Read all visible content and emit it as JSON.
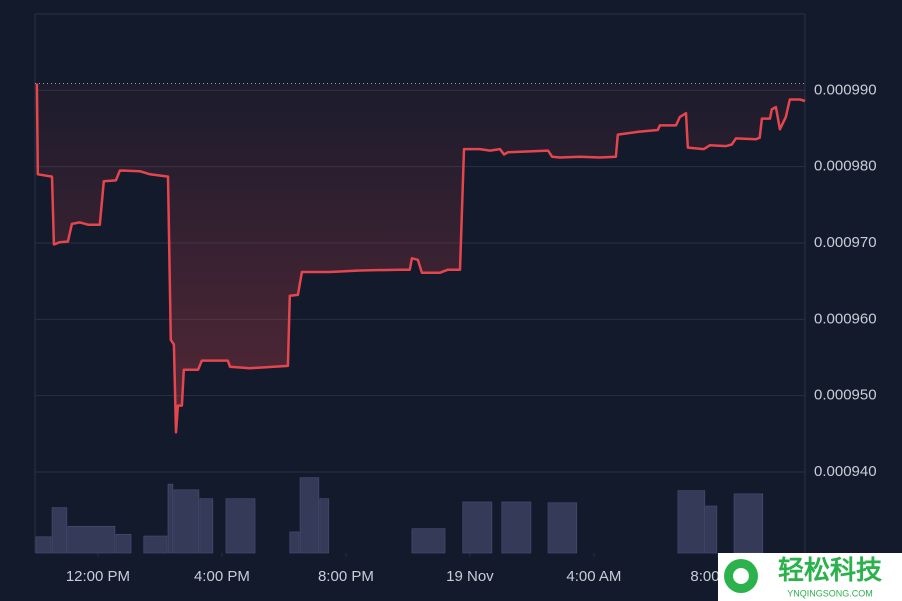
{
  "chart_data": {
    "type": "line",
    "x": [
      -1.97,
      -1.94,
      -1.48,
      -1.42,
      -1.23,
      -0.97,
      -0.84,
      -0.58,
      -0.32,
      0.06,
      0.19,
      0.58,
      0.71,
      1.35,
      1.68,
      2.26,
      2.35,
      2.45,
      2.52,
      2.58,
      2.71,
      2.77,
      3.23,
      3.35,
      4.19,
      4.26,
      4.9,
      6.13,
      6.19,
      6.45,
      6.58,
      7.48,
      8.45,
      9.74,
      10.06,
      10.13,
      10.32,
      10.45,
      11.03,
      11.29,
      11.68,
      11.81,
      12.32,
      12.65,
      12.97,
      13.1,
      13.23,
      13.94,
      14.52,
      14.65,
      14.9,
      15.55,
      16.19,
      16.71,
      16.77,
      17.48,
      18.06,
      18.13,
      18.65,
      18.77,
      18.97,
      19.03,
      19.55,
      19.74,
      20.26,
      20.45,
      20.58,
      21.23,
      21.35,
      21.42,
      21.68,
      21.74,
      21.87,
      22.0,
      22.19,
      22.32,
      22.65,
      22.81
    ],
    "series": [
      {
        "color": "#e5454d",
        "values": [
          0.0009909,
          0.000979,
          0.0009787,
          0.0009698,
          0.0009701,
          0.0009702,
          0.0009725,
          0.0009727,
          0.0009724,
          0.0009724,
          0.0009781,
          0.0009782,
          0.0009795,
          0.0009794,
          0.000979,
          0.0009787,
          0.0009573,
          0.0009567,
          0.0009452,
          0.0009487,
          0.0009487,
          0.0009534,
          0.0009534,
          0.0009546,
          0.0009546,
          0.0009538,
          0.0009536,
          0.0009539,
          0.0009631,
          0.0009632,
          0.0009662,
          0.0009662,
          0.0009664,
          0.0009665,
          0.0009665,
          0.000968,
          0.0009678,
          0.0009661,
          0.0009661,
          0.0009665,
          0.0009665,
          0.0009823,
          0.0009823,
          0.0009821,
          0.0009823,
          0.0009816,
          0.0009819,
          0.000982,
          0.0009821,
          0.0009813,
          0.0009812,
          0.0009813,
          0.0009812,
          0.0009813,
          0.0009842,
          0.0009846,
          0.0009848,
          0.0009854,
          0.0009854,
          0.0009865,
          0.000987,
          0.0009825,
          0.0009823,
          0.0009828,
          0.0009827,
          0.0009829,
          0.0009837,
          0.0009836,
          0.0009838,
          0.0009863,
          0.0009863,
          0.0009875,
          0.0009878,
          0.0009849,
          0.0009865,
          0.0009888,
          0.0009888,
          0.0009886
        ]
      }
    ],
    "reference": 0.0009909,
    "xlim": [
      -2.03,
      22.81
    ],
    "xticks": [
      {
        "value": 0,
        "label": "12:00 PM"
      },
      {
        "value": 4,
        "label": "4:00 PM"
      },
      {
        "value": 8,
        "label": "8:00 PM"
      },
      {
        "value": 12,
        "label": "19 Nov"
      },
      {
        "value": 16,
        "label": "4:00 AM"
      },
      {
        "value": 20,
        "label": "8:00 AM"
      }
    ],
    "ylim": [
      0.00094,
      0.001
    ],
    "yticks": [
      {
        "value": 0.00094,
        "label": "0.000940"
      },
      {
        "value": 0.00095,
        "label": "0.000950"
      },
      {
        "value": 0.00096,
        "label": "0.000960"
      },
      {
        "value": 0.00097,
        "label": "0.000970"
      },
      {
        "value": 0.00098,
        "label": "0.000980"
      },
      {
        "value": 0.00099,
        "label": "0.000990"
      }
    ],
    "grid": true,
    "volume": {
      "color": "#353a58",
      "lim": [
        0,
        100
      ],
      "x0": [
        -2.0,
        -1.48,
        -0.97,
        0.58,
        1.48,
        2.26,
        2.45,
        3.29,
        4.13,
        6.19,
        6.52,
        7.16,
        10.13,
        11.77,
        13.03,
        14.52,
        18.71,
        19.61,
        20.52
      ],
      "x1": [
        -1.48,
        -0.97,
        0.58,
        1.1,
        2.26,
        2.45,
        3.29,
        3.74,
        5.1,
        6.52,
        7.16,
        7.48,
        11.23,
        12.74,
        14.0,
        15.48,
        19.61,
        20.0,
        21.48
      ],
      "values": [
        20,
        56,
        33,
        23,
        21,
        85,
        78,
        67,
        67,
        26,
        93,
        67,
        30,
        63,
        63,
        62,
        77,
        58,
        73
      ]
    }
  },
  "watermark": {
    "text": "轻松科技",
    "url": "YNQINGSONG.COM"
  }
}
